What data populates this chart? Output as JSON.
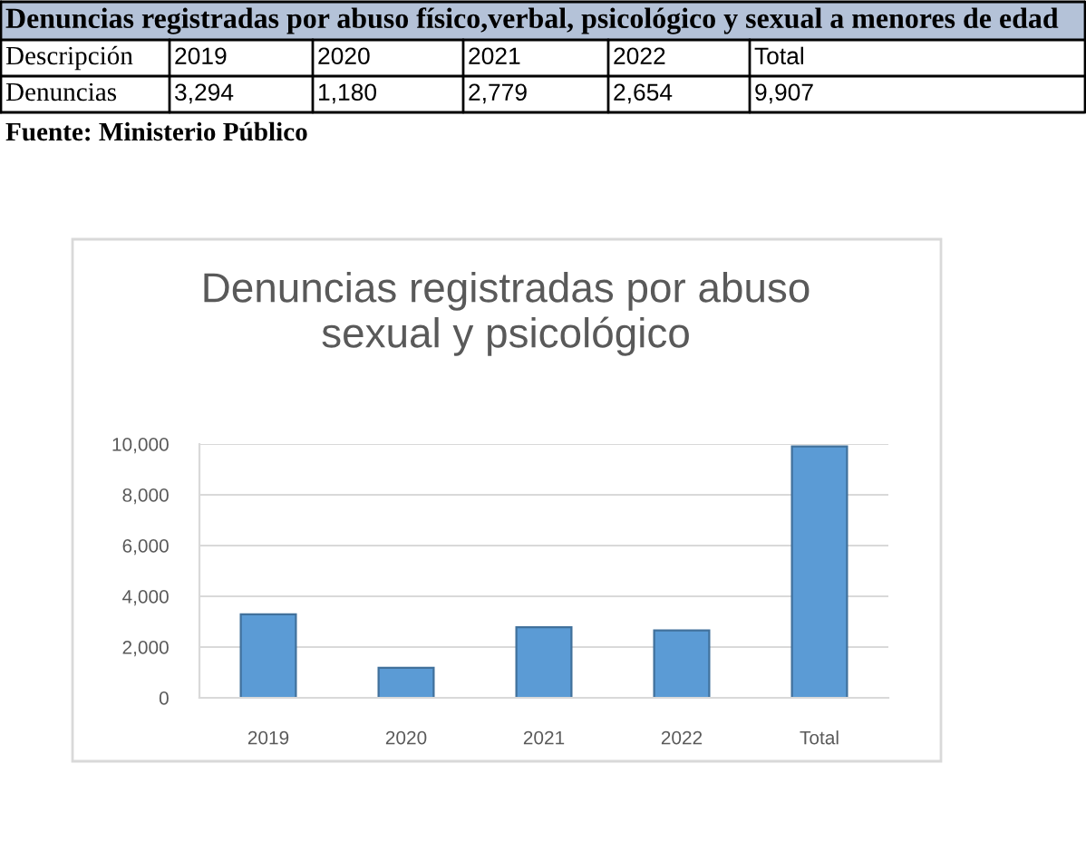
{
  "chart_data": {
    "type": "bar",
    "title": "Denuncias registradas por abuso sexual y psicológico",
    "categories": [
      "2019",
      "2020",
      "2021",
      "2022",
      "Total"
    ],
    "values": [
      3294,
      1180,
      2779,
      2654,
      9907
    ],
    "value_labels": [
      "3,294",
      "1,180",
      "2,779",
      "2,654",
      "9,907"
    ],
    "color": "#5b9bd5",
    "ylim": [
      0,
      10000
    ],
    "yticks": [
      0,
      {
        "value": 2000,
        "label": "2,000"
      },
      {
        "value": 4000,
        "label": "4,000"
      },
      {
        "value": 6000,
        "label": "6,000"
      },
      {
        "value": 8000,
        "label": "8,000"
      },
      {
        "value": 10000,
        "label": "10,000"
      }
    ],
    "grid": "y",
    "annotations": [
      "Denuncias registradas por abuso físico,verbal, psicológico y sexual a menores de edad",
      "Descripción",
      "Denuncias",
      "Fuente: Ministerio Público"
    ]
  }
}
